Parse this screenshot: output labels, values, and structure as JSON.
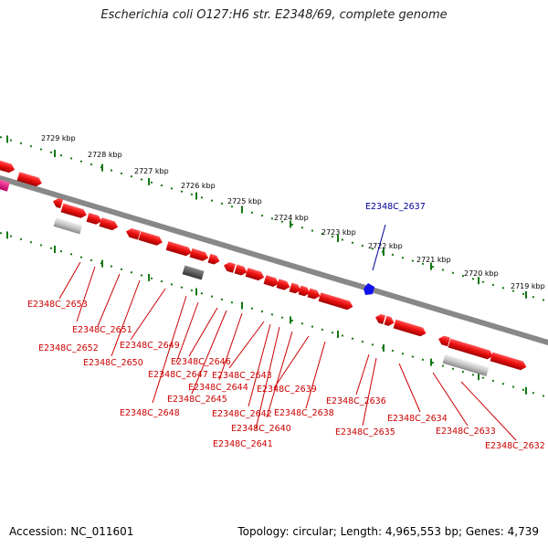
{
  "title": "Escherichia coli O127:H6 str. E2348/69, complete genome",
  "footer": {
    "accession": "Accession: NC_011601",
    "topology": "Topology: circular; Length: 4,965,553 bp; Genes: 4,739"
  },
  "colors": {
    "backbone": "#888888",
    "gene": "#ee1111",
    "gene_label": "#cc0000",
    "highlight_gene": "#1111ee",
    "highlight_label": "#000099",
    "ruler": "#117711",
    "pseudo": "#bbbbbb",
    "dark_feature": "#555555",
    "magenta_feature": "#ee1188"
  },
  "ruler_labels": [
    "2729 kbp",
    "2728 kbp",
    "2727 kbp",
    "2726 kbp",
    "2725 kbp",
    "2724 kbp",
    "2723 kbp",
    "2722 kbp",
    "2721 kbp",
    "2720 kbp",
    "2719 kbp"
  ],
  "highlighted_gene": "E2348C_2637",
  "gene_labels": [
    "E2348C_2653",
    "E2348C_2652",
    "E2348C_2651",
    "E2348C_2650",
    "E2348C_2649",
    "E2348C_2648",
    "E2348C_2647",
    "E2348C_2646",
    "E2348C_2645",
    "E2348C_2644",
    "E2348C_2643",
    "E2348C_2642",
    "E2348C_2641",
    "E2348C_2640",
    "E2348C_2639",
    "E2348C_2638",
    "E2348C_2636",
    "E2348C_2635",
    "E2348C_2634",
    "E2348C_2633",
    "E2348C_2632"
  ]
}
